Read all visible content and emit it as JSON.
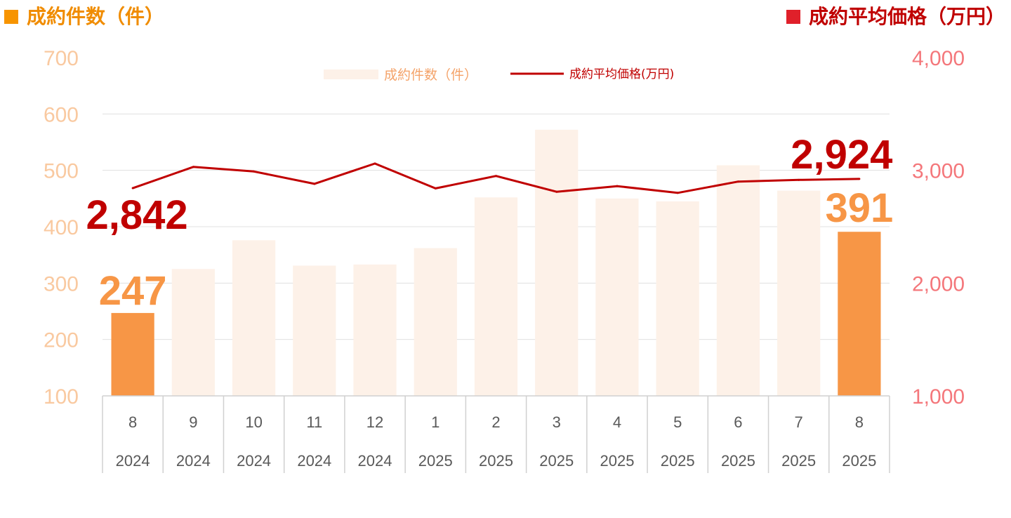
{
  "header": {
    "left_title": "成約件数（件）",
    "right_title": "成約平均価格（万円）"
  },
  "colors": {
    "bar_highlight": "#F79646",
    "bar_faded": "#FDF1E8",
    "line": "#C00000",
    "left_axis_text": "#F9C9A0",
    "right_axis_text": "#F4777B",
    "left_marker": "#F79400",
    "right_marker": "#E0202A",
    "left_title_text": "#F08C00",
    "right_title_text": "#C00000",
    "grid": "#E0E0E0"
  },
  "legend": {
    "bar_label": "成約件数（件）",
    "line_label": "成約平均価格(万円)"
  },
  "chart_data": {
    "type": "bar",
    "categories": [
      {
        "month": "8",
        "year": "2024"
      },
      {
        "month": "9",
        "year": "2024"
      },
      {
        "month": "10",
        "year": "2024"
      },
      {
        "month": "11",
        "year": "2024"
      },
      {
        "month": "12",
        "year": "2024"
      },
      {
        "month": "1",
        "year": "2025"
      },
      {
        "month": "2",
        "year": "2025"
      },
      {
        "month": "3",
        "year": "2025"
      },
      {
        "month": "4",
        "year": "2025"
      },
      {
        "month": "5",
        "year": "2025"
      },
      {
        "month": "6",
        "year": "2025"
      },
      {
        "month": "7",
        "year": "2025"
      },
      {
        "month": "8",
        "year": "2025"
      }
    ],
    "series": [
      {
        "name": "成約件数（件）",
        "type": "bar",
        "axis": "left",
        "values": [
          247,
          325,
          376,
          331,
          333,
          362,
          452,
          572,
          450,
          445,
          509,
          464,
          391
        ],
        "highlight": [
          true,
          false,
          false,
          false,
          false,
          false,
          false,
          false,
          false,
          false,
          false,
          false,
          true
        ]
      },
      {
        "name": "成約平均価格(万円)",
        "type": "line",
        "axis": "right",
        "values": [
          2842,
          3030,
          2990,
          2880,
          3060,
          2840,
          2950,
          2810,
          2860,
          2800,
          2900,
          2915,
          2924
        ]
      }
    ],
    "y_left": {
      "min": 100,
      "max": 700,
      "ticks": [
        "700",
        "600",
        "500",
        "400",
        "300",
        "200",
        "100"
      ]
    },
    "y_right": {
      "min": 1000,
      "max": 4000,
      "ticks": [
        "4,000",
        "3,000",
        "2,000",
        "1,000"
      ]
    },
    "annotations": {
      "bar_first": "247",
      "bar_last": "391",
      "line_first": "2,842",
      "line_last": "2,924"
    },
    "grid": true,
    "legend_position": "top-center"
  }
}
